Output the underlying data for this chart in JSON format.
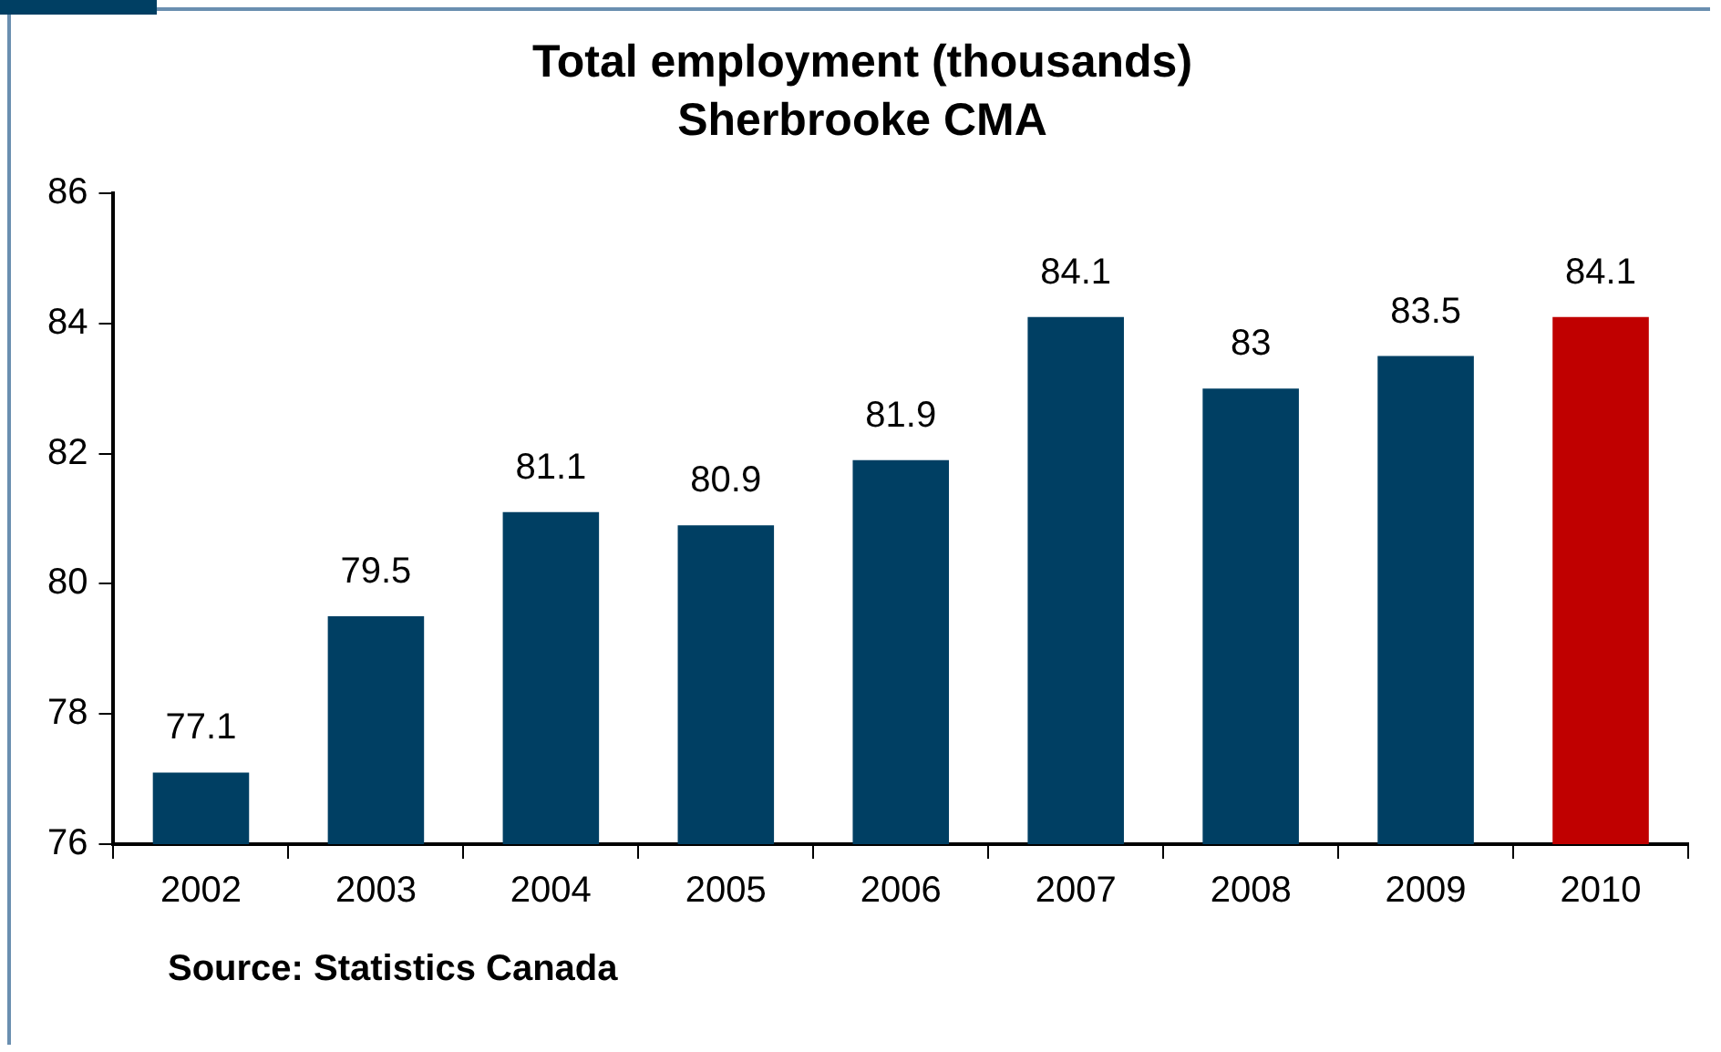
{
  "chart_data": {
    "type": "bar",
    "title": "Total employment (thousands)",
    "subtitle": "Sherbrooke CMA",
    "categories": [
      "2002",
      "2003",
      "2004",
      "2005",
      "2006",
      "2007",
      "2008",
      "2009",
      "2010"
    ],
    "values": [
      77.1,
      79.5,
      81.1,
      80.9,
      81.9,
      84.1,
      83,
      83.5,
      84.1
    ],
    "colors": [
      "#003f63",
      "#003f63",
      "#003f63",
      "#003f63",
      "#003f63",
      "#003f63",
      "#003f63",
      "#003f63",
      "#c00000"
    ],
    "ylim": [
      76,
      86
    ],
    "yticks": [
      76,
      78,
      80,
      82,
      84,
      86
    ],
    "grid": false,
    "legend": false,
    "data_labels": true,
    "annotations": [
      "Source: Statistics Canada"
    ]
  }
}
